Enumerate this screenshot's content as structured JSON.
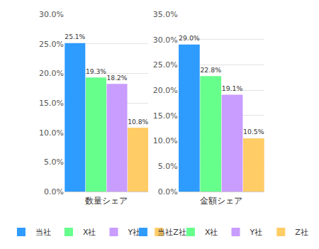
{
  "chart_data": [
    {
      "type": "bar",
      "x_label": "数量シェア",
      "categories": [
        "当社",
        "X社",
        "Y社",
        "Z社"
      ],
      "values": [
        25.1,
        19.3,
        18.2,
        10.8
      ],
      "value_labels": [
        "25.1%",
        "19.3%",
        "18.2%",
        "10.8%"
      ],
      "colors": [
        "#2e9bff",
        "#66ff8c",
        "#c99cff",
        "#ffcc66"
      ],
      "ylim": [
        0,
        30
      ],
      "yticks": [
        {
          "value": 0,
          "label": "0.0%"
        },
        {
          "value": 5,
          "label": "5.0%"
        },
        {
          "value": 10,
          "label": "10.0%"
        },
        {
          "value": 15,
          "label": "15.0%"
        },
        {
          "value": 20,
          "label": "20.0%"
        },
        {
          "value": 25,
          "label": "25.0%"
        },
        {
          "value": 30,
          "label": "30.0%"
        }
      ],
      "grid": true,
      "data_labels": true,
      "tick_labels": "y",
      "legend": "bottom"
    },
    {
      "type": "bar",
      "x_label": "金額シェア",
      "categories": [
        "当社",
        "X社",
        "Y社",
        "Z社"
      ],
      "values": [
        29.0,
        22.8,
        19.1,
        10.5
      ],
      "value_labels": [
        "29.0%",
        "22.8%",
        "19.1%",
        "10.5%"
      ],
      "colors": [
        "#2e9bff",
        "#66ff8c",
        "#c99cff",
        "#ffcc66"
      ],
      "ylim": [
        0,
        35
      ],
      "yticks": [
        {
          "value": 0,
          "label": "0.0%"
        },
        {
          "value": 5,
          "label": "5.0%"
        },
        {
          "value": 10,
          "label": "10.0%"
        },
        {
          "value": 15,
          "label": "15.0%"
        },
        {
          "value": 20,
          "label": "20.0%"
        },
        {
          "value": 25,
          "label": "25.0%"
        },
        {
          "value": 30,
          "label": "30.0%"
        },
        {
          "value": 35,
          "label": "35.0%"
        }
      ],
      "grid": true,
      "data_labels": true,
      "tick_labels": "y",
      "legend": "bottom"
    }
  ]
}
